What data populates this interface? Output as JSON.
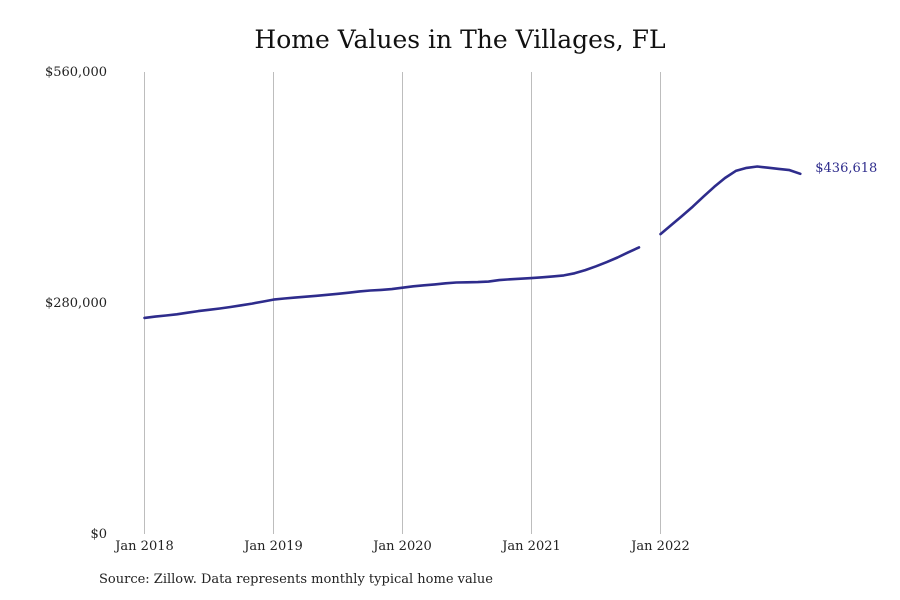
{
  "chart_data": {
    "type": "line",
    "title": "Home Values in The Villages, FL",
    "xlabel": "",
    "ylabel": "",
    "x_tick_labels": [
      "Jan 2018",
      "Jan 2019",
      "Jan 2020",
      "Jan 2021",
      "Jan 2022"
    ],
    "y_tick_labels": [
      "$0",
      "$280,000",
      "$560,000"
    ],
    "ylim": [
      0,
      560000
    ],
    "grid": "vertical lines at each January",
    "legend": "none",
    "line_color": "#2e2c8c",
    "grid_color": "#bdbdbd",
    "end_label": "$436,618",
    "series": [
      {
        "segments": [
          {
            "x": [
              "2018-01",
              "2018-02",
              "2018-03",
              "2018-04",
              "2018-05",
              "2018-06",
              "2018-07",
              "2018-08",
              "2018-09",
              "2018-10",
              "2018-11",
              "2018-12",
              "2019-01",
              "2019-02",
              "2019-03",
              "2019-04",
              "2019-05",
              "2019-06",
              "2019-07",
              "2019-08",
              "2019-09",
              "2019-10",
              "2019-11",
              "2019-12",
              "2020-01",
              "2020-02",
              "2020-03",
              "2020-04",
              "2020-05",
              "2020-06",
              "2020-07",
              "2020-08",
              "2020-09",
              "2020-10",
              "2020-11",
              "2020-12",
              "2021-01",
              "2021-02",
              "2021-03",
              "2021-04",
              "2021-05",
              "2021-06",
              "2021-07",
              "2021-08",
              "2021-09",
              "2021-10",
              "2021-11"
            ],
            "values": [
              262000,
              263500,
              264800,
              266300,
              268200,
              270200,
              271800,
              273300,
              275100,
              277200,
              279300,
              281700,
              284100,
              285400,
              286500,
              287600,
              288700,
              290000,
              291200,
              292500,
              294000,
              295200,
              295900,
              296900,
              298500,
              300300,
              301500,
              302600,
              303900,
              304900,
              305100,
              305300,
              305900,
              307700,
              308700,
              309500,
              310200,
              311200,
              312200,
              313500,
              316000,
              319900,
              324500,
              329600,
              335100,
              341500,
              347400
            ]
          },
          {
            "x": [
              "2022-01",
              "2022-02",
              "2022-03",
              "2022-04",
              "2022-05",
              "2022-06",
              "2022-07",
              "2022-08",
              "2022-09",
              "2022-10",
              "2022-11",
              "2022-12",
              "2023-01",
              "2023-02"
            ],
            "values": [
              363500,
              374600,
              385400,
              396800,
              409000,
              420800,
              431500,
              440100,
              443800,
              445400,
              444000,
              442600,
              441100,
              436618
            ]
          }
        ]
      }
    ]
  },
  "footer": {
    "source": "Source: Zillow. Data represents monthly typical home value"
  }
}
